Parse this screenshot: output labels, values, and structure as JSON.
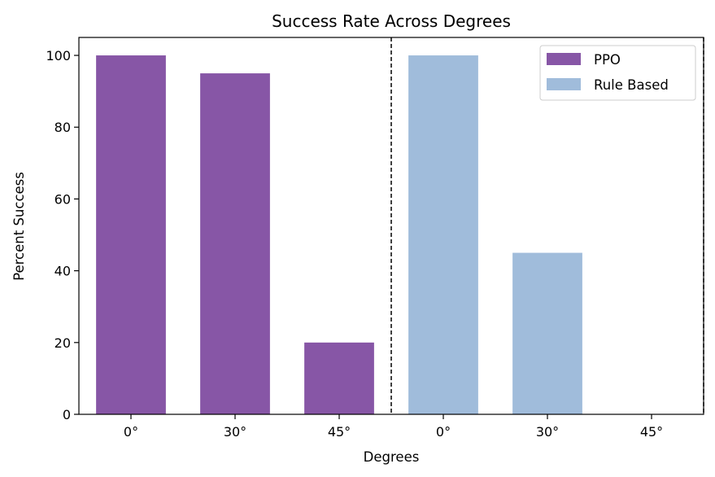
{
  "chart_data": {
    "type": "bar",
    "title": "Success Rate Across Degrees",
    "xlabel": "Degrees",
    "ylabel": "Percent Success",
    "ylim": [
      0,
      105
    ],
    "yticks": [
      0,
      20,
      40,
      60,
      80,
      100
    ],
    "categories": [
      "0°",
      "30°",
      "45°",
      "0°",
      "30°",
      "45°"
    ],
    "legend_position": "top-right",
    "grid": false,
    "series": [
      {
        "name": "PPO",
        "color": "#8756a6",
        "values": [
          100,
          95,
          20,
          null,
          null,
          null
        ]
      },
      {
        "name": "Rule Based",
        "color": "#a0bcdb",
        "values": [
          null,
          null,
          null,
          100,
          45,
          0
        ]
      }
    ],
    "separators": [
      2.5,
      5.5
    ]
  }
}
